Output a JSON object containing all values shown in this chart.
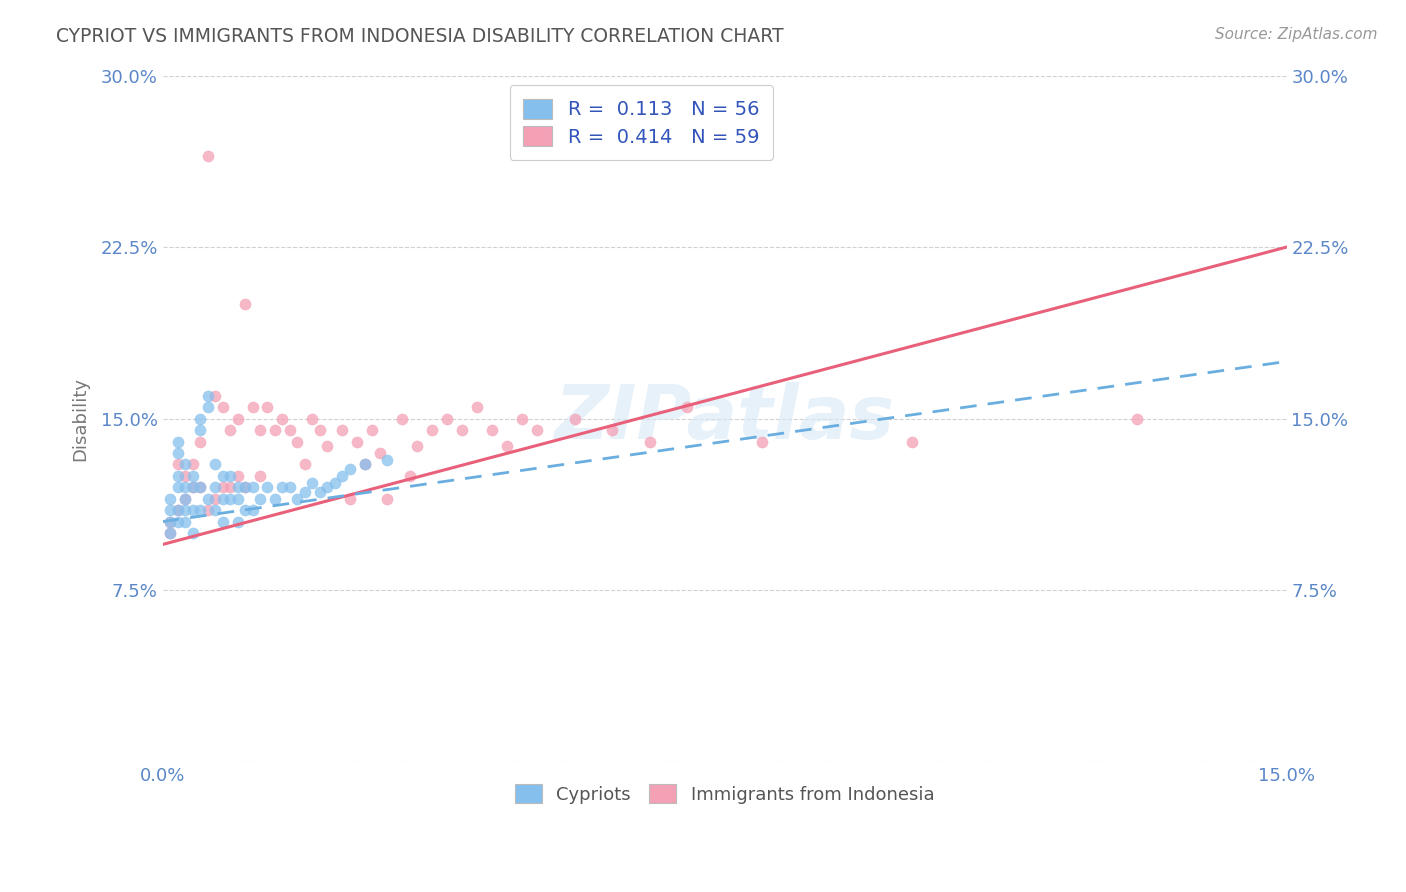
{
  "title": "CYPRIOT VS IMMIGRANTS FROM INDONESIA DISABILITY CORRELATION CHART",
  "source_text": "Source: ZipAtlas.com",
  "ylabel": "Disability",
  "xlabel": "",
  "watermark": "ZIPatlas",
  "R_cypriot": 0.113,
  "N_cypriot": 56,
  "R_indonesia": 0.414,
  "N_indonesia": 59,
  "cypriot_color": "#85bfed",
  "indonesia_color": "#f4a0b5",
  "cypriot_line_color": "#6aaee0",
  "indonesia_line_color": "#e8607a",
  "xlim": [
    0.0,
    0.15
  ],
  "ylim": [
    0.0,
    0.3
  ],
  "yticks": [
    0.0,
    0.075,
    0.15,
    0.225,
    0.3
  ],
  "ytick_labels": [
    "",
    "7.5%",
    "15.0%",
    "22.5%",
    "30.0%"
  ],
  "xticks": [
    0.0,
    0.03,
    0.06,
    0.09,
    0.12,
    0.15
  ],
  "xtick_labels": [
    "0.0%",
    "",
    "",
    "",
    "",
    "15.0%"
  ],
  "cypriot_x": [
    0.001,
    0.001,
    0.001,
    0.001,
    0.002,
    0.002,
    0.002,
    0.002,
    0.002,
    0.002,
    0.003,
    0.003,
    0.003,
    0.003,
    0.003,
    0.004,
    0.004,
    0.004,
    0.004,
    0.005,
    0.005,
    0.005,
    0.005,
    0.006,
    0.006,
    0.006,
    0.007,
    0.007,
    0.007,
    0.008,
    0.008,
    0.008,
    0.009,
    0.009,
    0.01,
    0.01,
    0.01,
    0.011,
    0.011,
    0.012,
    0.012,
    0.013,
    0.014,
    0.015,
    0.016,
    0.017,
    0.018,
    0.019,
    0.02,
    0.021,
    0.022,
    0.023,
    0.024,
    0.025,
    0.027,
    0.03
  ],
  "cypriot_y": [
    0.115,
    0.11,
    0.105,
    0.1,
    0.14,
    0.135,
    0.125,
    0.12,
    0.11,
    0.105,
    0.13,
    0.12,
    0.115,
    0.11,
    0.105,
    0.125,
    0.12,
    0.11,
    0.1,
    0.15,
    0.145,
    0.12,
    0.11,
    0.16,
    0.155,
    0.115,
    0.13,
    0.12,
    0.11,
    0.125,
    0.115,
    0.105,
    0.125,
    0.115,
    0.12,
    0.115,
    0.105,
    0.12,
    0.11,
    0.12,
    0.11,
    0.115,
    0.12,
    0.115,
    0.12,
    0.12,
    0.115,
    0.118,
    0.122,
    0.118,
    0.12,
    0.122,
    0.125,
    0.128,
    0.13,
    0.132
  ],
  "indonesia_x": [
    0.001,
    0.001,
    0.002,
    0.002,
    0.003,
    0.003,
    0.004,
    0.004,
    0.005,
    0.005,
    0.006,
    0.006,
    0.007,
    0.007,
    0.008,
    0.008,
    0.009,
    0.009,
    0.01,
    0.01,
    0.011,
    0.011,
    0.012,
    0.013,
    0.013,
    0.014,
    0.015,
    0.016,
    0.017,
    0.018,
    0.019,
    0.02,
    0.021,
    0.022,
    0.024,
    0.025,
    0.026,
    0.027,
    0.028,
    0.029,
    0.03,
    0.032,
    0.033,
    0.034,
    0.036,
    0.038,
    0.04,
    0.042,
    0.044,
    0.046,
    0.048,
    0.05,
    0.055,
    0.06,
    0.065,
    0.07,
    0.08,
    0.1,
    0.13
  ],
  "indonesia_y": [
    0.105,
    0.1,
    0.13,
    0.11,
    0.125,
    0.115,
    0.13,
    0.12,
    0.14,
    0.12,
    0.265,
    0.11,
    0.16,
    0.115,
    0.155,
    0.12,
    0.145,
    0.12,
    0.15,
    0.125,
    0.2,
    0.12,
    0.155,
    0.145,
    0.125,
    0.155,
    0.145,
    0.15,
    0.145,
    0.14,
    0.13,
    0.15,
    0.145,
    0.138,
    0.145,
    0.115,
    0.14,
    0.13,
    0.145,
    0.135,
    0.115,
    0.15,
    0.125,
    0.138,
    0.145,
    0.15,
    0.145,
    0.155,
    0.145,
    0.138,
    0.15,
    0.145,
    0.15,
    0.145,
    0.14,
    0.155,
    0.14,
    0.14,
    0.15
  ],
  "trend_cyp_x0": 0.0,
  "trend_cyp_y0": 0.105,
  "trend_cyp_x1": 0.15,
  "trend_cyp_y1": 0.175,
  "trend_ind_x0": 0.0,
  "trend_ind_y0": 0.095,
  "trend_ind_x1": 0.15,
  "trend_ind_y1": 0.225
}
